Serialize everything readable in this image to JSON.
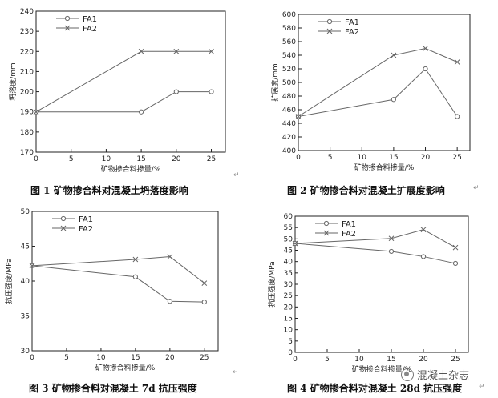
{
  "chart_data": [
    {
      "type": "line",
      "caption": "图 1  矿物掺合料对混凝土坍落度影响",
      "xlabel": "矿物掺合料掺量/%",
      "ylabel": "坍落度/mm",
      "xlim": [
        0,
        27
      ],
      "ylim": [
        170,
        240
      ],
      "xticks": [
        0,
        5,
        10,
        15,
        20,
        25
      ],
      "yticks": [
        170,
        180,
        190,
        200,
        210,
        220,
        230,
        240
      ],
      "legend": "top-left",
      "x": [
        0,
        15,
        20,
        25
      ],
      "series": [
        {
          "name": "FA1",
          "marker": "circle",
          "values": [
            190,
            190,
            200,
            200
          ]
        },
        {
          "name": "FA2",
          "marker": "x",
          "values": [
            190,
            220,
            220,
            220
          ]
        }
      ]
    },
    {
      "type": "line",
      "caption": "图 2  矿物掺合料对混凝土扩展度影响",
      "xlabel": "矿物掺合料掺量/%",
      "ylabel": "扩展度/mm",
      "xlim": [
        0,
        27
      ],
      "ylim": [
        400,
        600
      ],
      "xticks": [
        0,
        5,
        10,
        15,
        20,
        25
      ],
      "yticks": [
        400,
        420,
        440,
        460,
        480,
        500,
        520,
        540,
        560,
        580,
        600
      ],
      "legend": "top-left",
      "x": [
        0,
        15,
        20,
        25
      ],
      "series": [
        {
          "name": "FA1",
          "marker": "circle",
          "values": [
            450,
            475,
            520,
            450
          ]
        },
        {
          "name": "FA2",
          "marker": "x",
          "values": [
            450,
            540,
            550,
            530
          ]
        }
      ]
    },
    {
      "type": "line",
      "caption": "图 3  矿物掺合料对混凝土 7d 抗压强度",
      "xlabel": "矿物掺合料掺量/%",
      "ylabel": "抗压强度/MPa",
      "xlim": [
        0,
        27
      ],
      "ylim": [
        30,
        50
      ],
      "xticks": [
        0,
        5,
        10,
        15,
        20,
        25
      ],
      "yticks": [
        30,
        35,
        40,
        45,
        50
      ],
      "legend": "top-left",
      "x": [
        0,
        15,
        20,
        25
      ],
      "series": [
        {
          "name": "FA1",
          "marker": "circle",
          "values": [
            42.2,
            40.6,
            37.1,
            37.0
          ]
        },
        {
          "name": "FA2",
          "marker": "x",
          "values": [
            42.2,
            43.1,
            43.5,
            39.7
          ]
        }
      ]
    },
    {
      "type": "line",
      "caption": "图 4  矿物掺合料对混凝土 28d 抗压强度",
      "xlabel": "矿物掺合料掺量/%",
      "ylabel": "抗压强度/MPa",
      "xlim": [
        0,
        27
      ],
      "ylim": [
        0,
        60
      ],
      "xticks": [
        0,
        5,
        10,
        15,
        20,
        25
      ],
      "yticks": [
        0,
        5,
        10,
        15,
        20,
        25,
        30,
        35,
        40,
        45,
        50,
        55,
        60
      ],
      "legend": "top-left",
      "x": [
        0,
        15,
        20,
        25
      ],
      "series": [
        {
          "name": "FA1",
          "marker": "circle",
          "values": [
            48,
            44.5,
            42.2,
            39.2
          ]
        },
        {
          "name": "FA2",
          "marker": "x",
          "values": [
            48,
            50.2,
            54.1,
            46.2
          ]
        }
      ]
    }
  ],
  "text_marks": [
    "↵",
    "↵",
    "↵",
    "↵"
  ],
  "watermark": "混凝土杂志",
  "colors": {
    "line": "#666666",
    "axis": "#222222",
    "text": "#111111"
  }
}
